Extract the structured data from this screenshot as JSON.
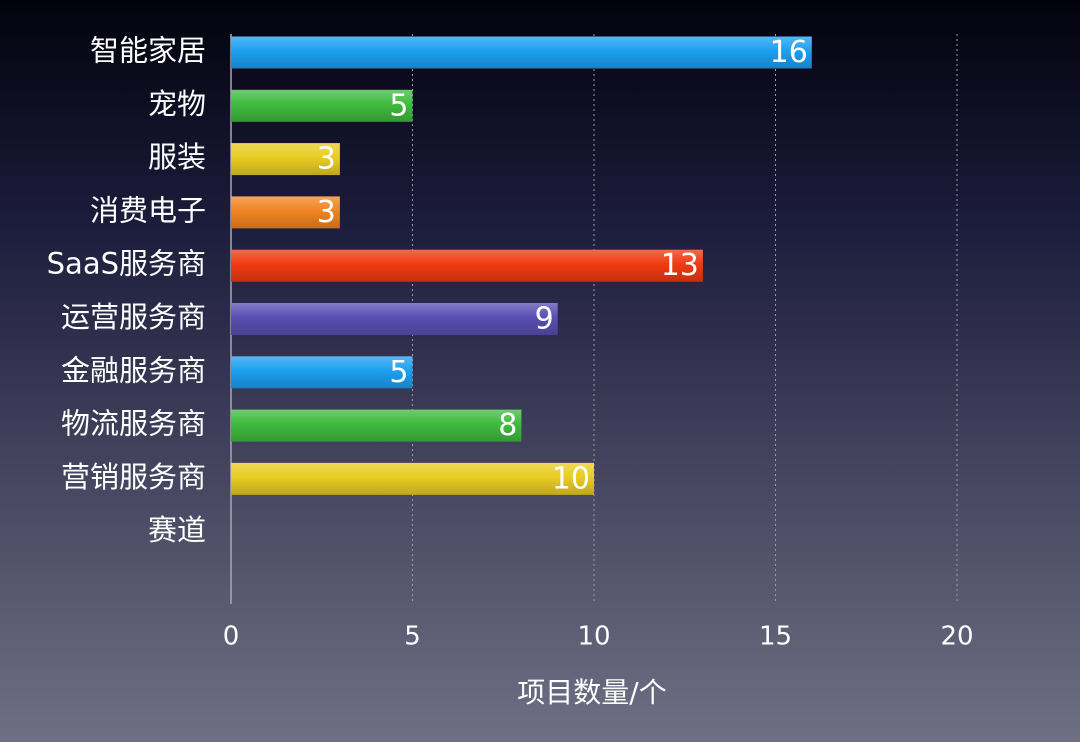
{
  "chart_data": {
    "type": "bar",
    "orientation": "horizontal",
    "categories": [
      "智能家居",
      "宠物",
      "服装",
      "消费电子",
      "SaaS服务商",
      "运营服务商",
      "金融服务商",
      "物流服务商",
      "营销服务商"
    ],
    "values": [
      16,
      5,
      3,
      3,
      13,
      9,
      5,
      8,
      10
    ],
    "y_axis_title": "赛道",
    "xlabel": "项目数量/个",
    "xlim": [
      0,
      20
    ],
    "xticks": [
      0,
      5,
      10,
      15,
      20
    ],
    "grid": true,
    "colors": [
      "#1d9ff0",
      "#3fbb3f",
      "#e9cc22",
      "#f08522",
      "#f03a12",
      "#5a4fb3",
      "#1d9ff0",
      "#3fbb3f",
      "#e9cc22"
    ]
  }
}
